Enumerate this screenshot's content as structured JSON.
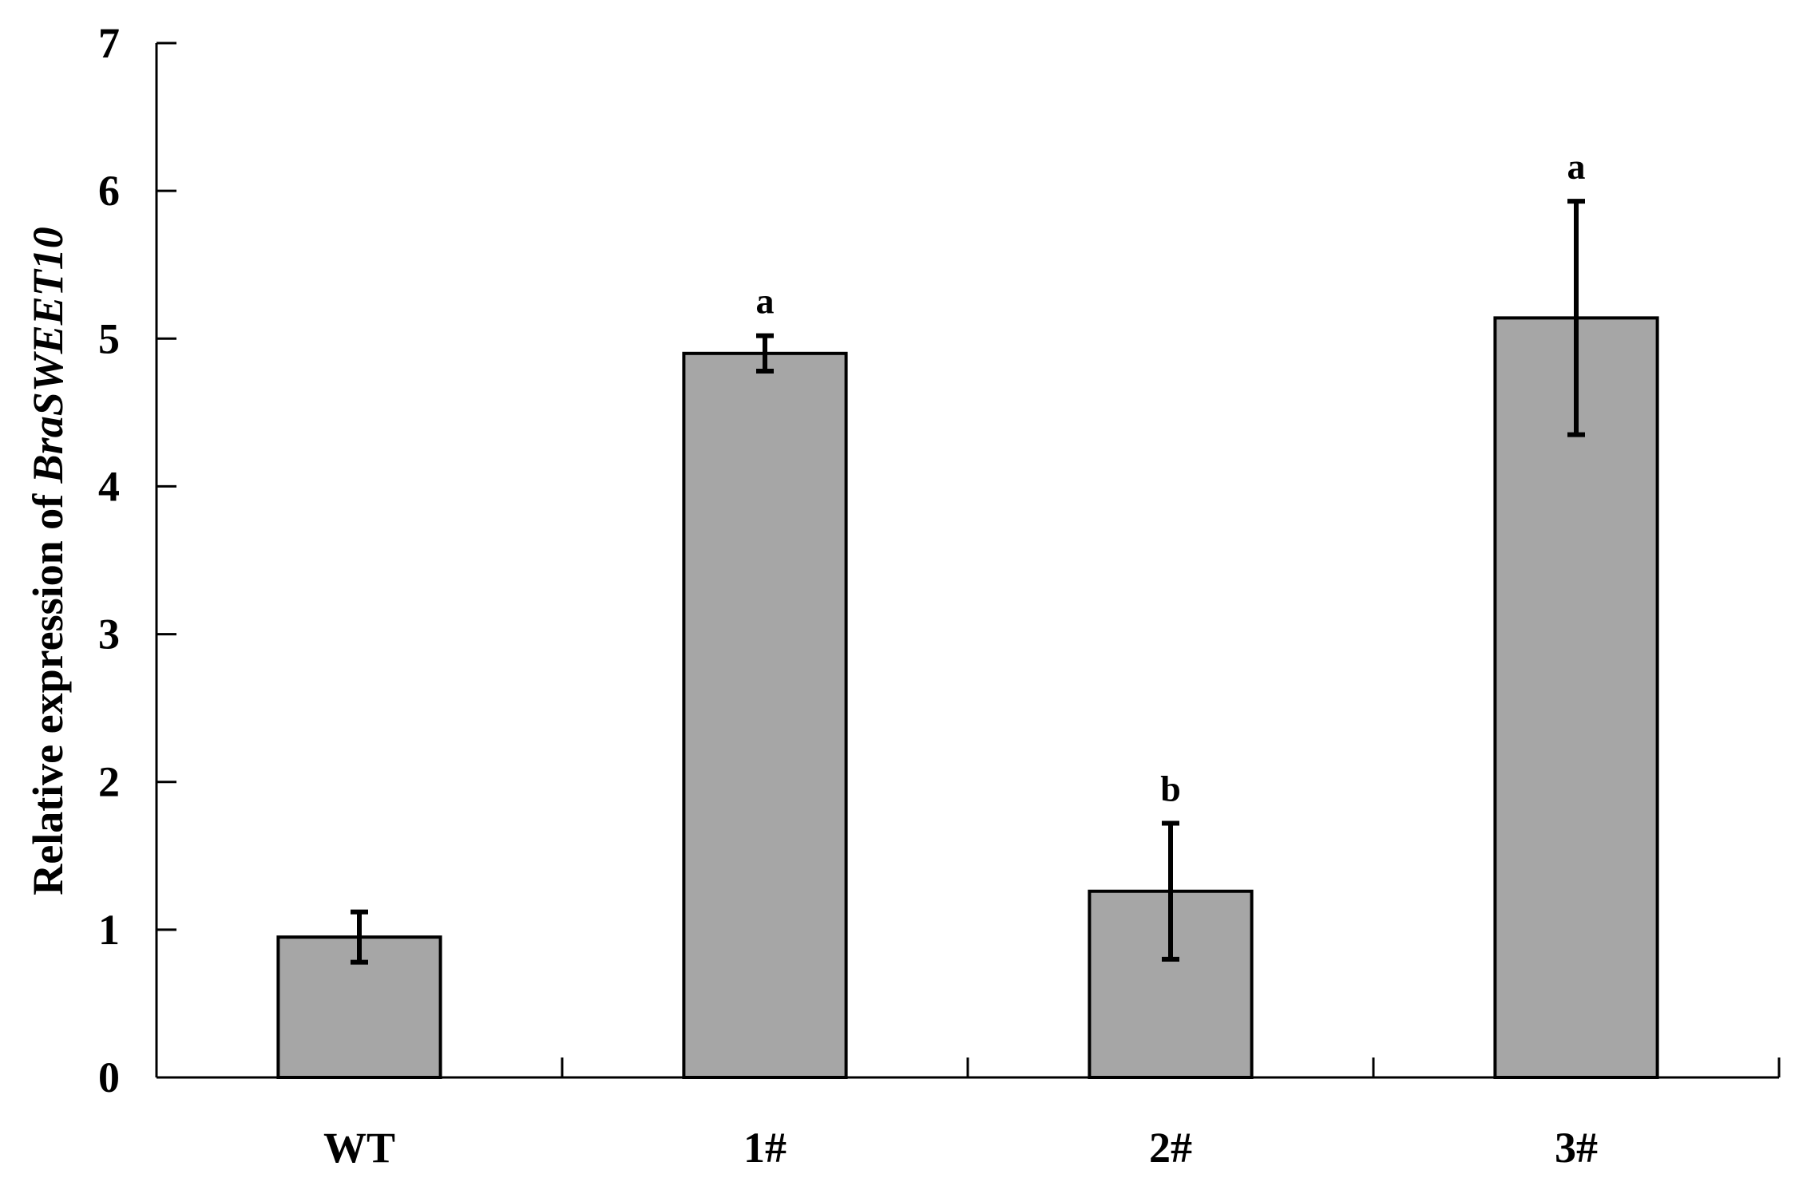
{
  "chart_data": {
    "type": "bar",
    "categories": [
      "WT",
      "1#",
      "2#",
      "3#"
    ],
    "values": [
      0.95,
      4.9,
      1.26,
      5.14
    ],
    "error": [
      0.17,
      0.12,
      0.46,
      0.79
    ],
    "significance": [
      "",
      "a",
      "b",
      "a"
    ],
    "ylabel": {
      "prefix": "Relative expression of ",
      "gene": "BraSWEET10"
    },
    "xlabel": "",
    "ylim": [
      0,
      7
    ],
    "yticks": [
      0,
      1,
      2,
      3,
      4,
      5,
      6,
      7
    ],
    "bar_color": "#a6a6a6",
    "grid": false,
    "legend": "none"
  }
}
